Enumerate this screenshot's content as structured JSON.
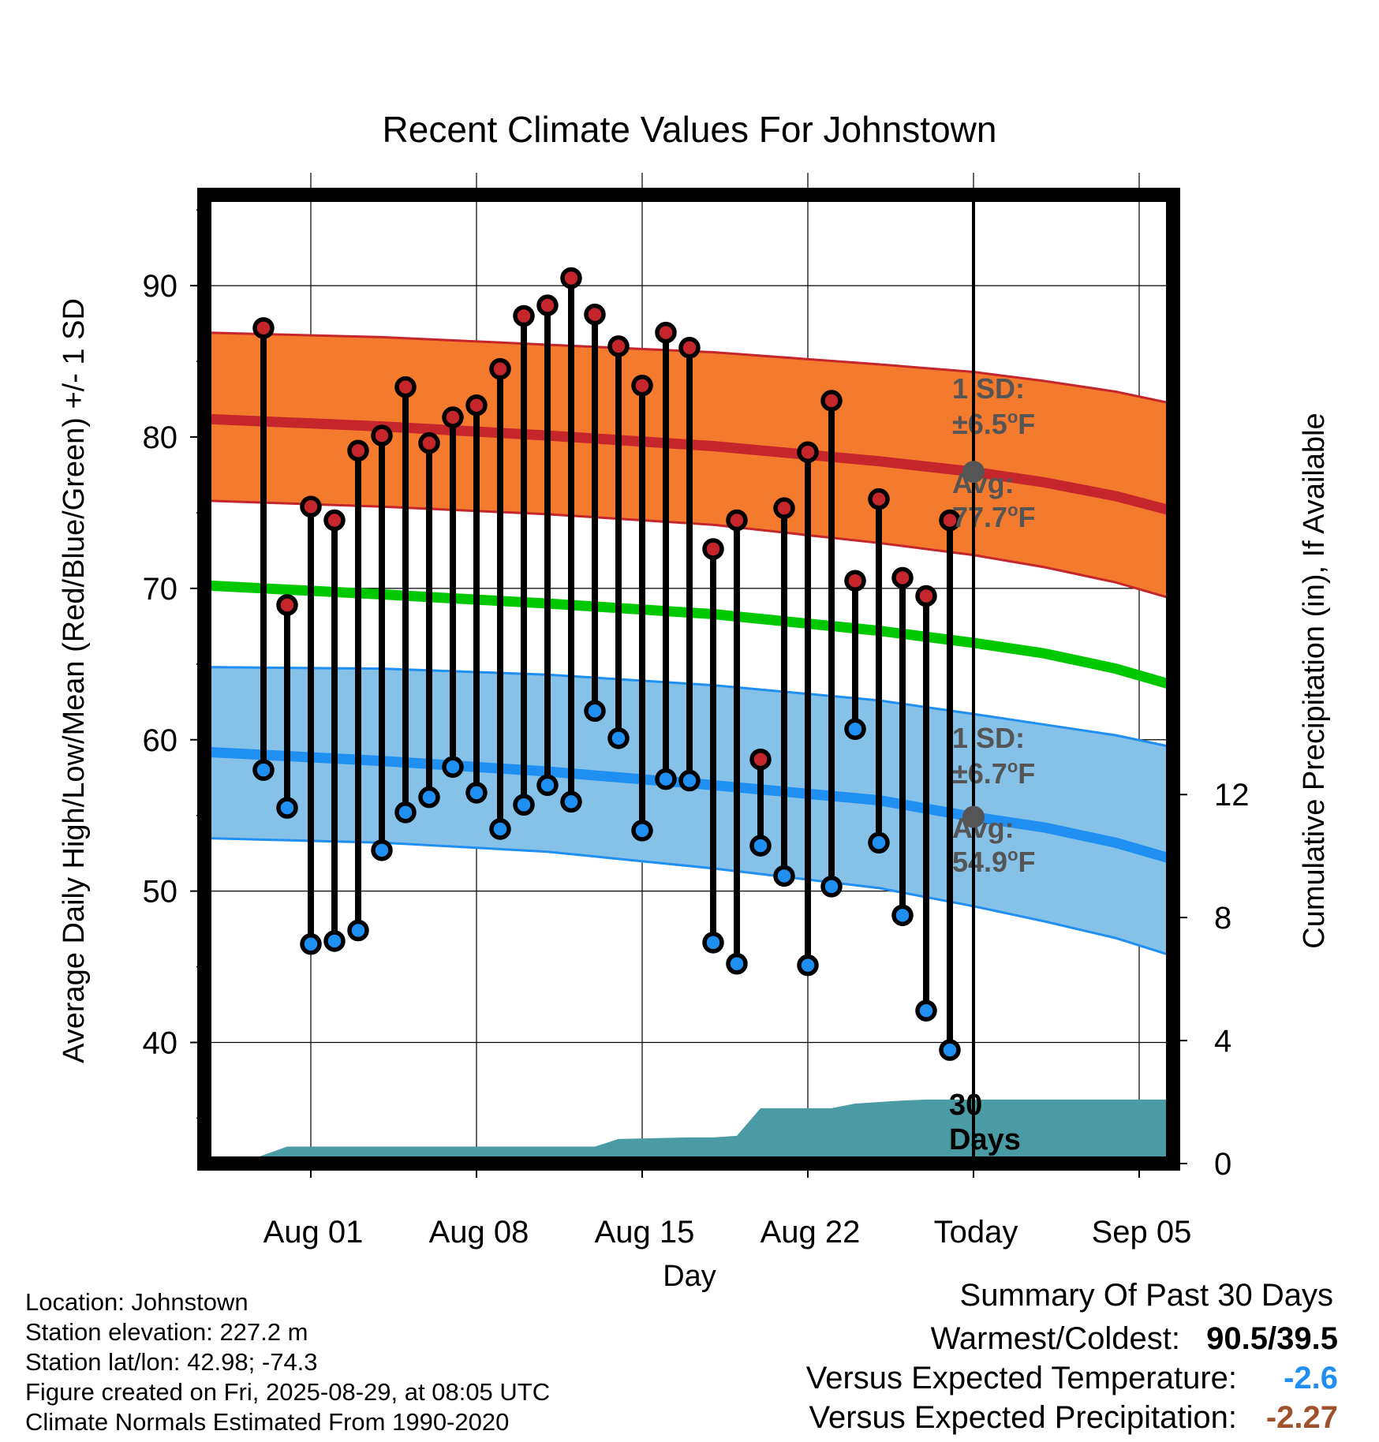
{
  "chart_data": {
    "type": "line",
    "title": "Recent Climate Values For Johnstown",
    "xlabel": "Day",
    "ylabel": "Average Daily High/Low/Mean (Red/Blue/Green) +/- 1 SD",
    "y2label": "Cumulative Precipitation (in), If Available",
    "ylim": [
      32,
      96
    ],
    "y2lim": [
      0,
      31.5
    ],
    "xlim": [
      "2025-07-28",
      "2025-09-07"
    ],
    "x_ticks": [
      {
        "date": "2025-08-01",
        "label": "Aug 01"
      },
      {
        "date": "2025-08-08",
        "label": "Aug 08"
      },
      {
        "date": "2025-08-15",
        "label": "Aug 15"
      },
      {
        "date": "2025-08-22",
        "label": "Aug 22"
      },
      {
        "date": "2025-08-29",
        "label": "Today"
      },
      {
        "date": "2025-09-05",
        "label": "Sep 05"
      }
    ],
    "y_ticks": [
      40,
      50,
      60,
      70,
      80,
      90
    ],
    "y2_ticks": [
      0,
      4,
      8,
      12
    ],
    "grid": true,
    "today": "2025-08-29",
    "dates": [
      "2025-07-30",
      "2025-07-31",
      "2025-08-01",
      "2025-08-02",
      "2025-08-03",
      "2025-08-04",
      "2025-08-05",
      "2025-08-06",
      "2025-08-07",
      "2025-08-08",
      "2025-08-09",
      "2025-08-10",
      "2025-08-11",
      "2025-08-12",
      "2025-08-13",
      "2025-08-14",
      "2025-08-15",
      "2025-08-16",
      "2025-08-17",
      "2025-08-18",
      "2025-08-19",
      "2025-08-20",
      "2025-08-21",
      "2025-08-22",
      "2025-08-23",
      "2025-08-24",
      "2025-08-25",
      "2025-08-26",
      "2025-08-27",
      "2025-08-28"
    ],
    "series": [
      {
        "name": "High",
        "color": "#c4262b",
        "values": [
          87.2,
          68.9,
          75.4,
          74.5,
          79.1,
          80.1,
          83.3,
          79.6,
          81.3,
          82.1,
          84.5,
          88.0,
          88.7,
          90.5,
          88.1,
          86.0,
          83.4,
          86.9,
          85.9,
          72.6,
          74.5,
          58.7,
          75.3,
          79.0,
          82.4,
          70.5,
          75.9,
          70.7,
          69.5,
          74.5
        ]
      },
      {
        "name": "Low",
        "color": "#1f8ff2",
        "values": [
          58.0,
          55.5,
          46.5,
          46.7,
          47.4,
          52.7,
          55.2,
          56.2,
          58.2,
          56.5,
          54.1,
          55.7,
          57.0,
          55.9,
          61.9,
          60.1,
          54.0,
          57.4,
          57.3,
          46.6,
          45.2,
          53.0,
          51.0,
          45.1,
          50.3,
          60.7,
          53.2,
          48.4,
          42.1,
          39.5
        ]
      }
    ],
    "normals": {
      "dates": [
        "2025-07-28",
        "2025-08-04",
        "2025-08-11",
        "2025-08-18",
        "2025-08-25",
        "2025-08-29",
        "2025-09-01",
        "2025-09-04",
        "2025-09-07"
      ],
      "high_mean": [
        81.2,
        80.7,
        80.1,
        79.4,
        78.4,
        77.7,
        77.0,
        76.1,
        75.1
      ],
      "high_sd_upper": [
        86.9,
        86.6,
        86.1,
        85.6,
        84.8,
        84.3,
        83.7,
        83.0,
        82.2
      ],
      "high_sd_lower": [
        75.8,
        75.4,
        74.9,
        74.2,
        73.0,
        72.2,
        71.4,
        70.4,
        69.3
      ],
      "mean": [
        70.2,
        69.6,
        69.0,
        68.3,
        67.2,
        66.4,
        65.7,
        64.7,
        63.6
      ],
      "low_mean": [
        59.2,
        58.6,
        57.9,
        57.0,
        56.0,
        54.9,
        54.2,
        53.2,
        52.1
      ],
      "low_sd_upper": [
        64.8,
        64.7,
        64.3,
        63.6,
        62.6,
        61.7,
        61.0,
        60.3,
        59.5
      ],
      "low_sd_lower": [
        53.5,
        53.2,
        52.6,
        51.5,
        50.2,
        49.0,
        48.0,
        46.9,
        45.7
      ]
    },
    "precipitation": {
      "color": "#4a9ba3",
      "dates": [
        "2025-07-29",
        "2025-07-31",
        "2025-08-13",
        "2025-08-14",
        "2025-08-17",
        "2025-08-18",
        "2025-08-19",
        "2025-08-20",
        "2025-08-23",
        "2025-08-24",
        "2025-08-25",
        "2025-08-26",
        "2025-08-27",
        "2025-09-07"
      ],
      "values": [
        0.0,
        0.55,
        0.55,
        0.8,
        0.85,
        0.85,
        0.9,
        1.8,
        1.8,
        1.95,
        2.0,
        2.05,
        2.08,
        2.08
      ]
    },
    "annotations": {
      "high_sd_label": "1 SD:",
      "high_sd_value": "±6.5",
      "high_avg_label": "Avg:",
      "high_avg_value": "77.7",
      "low_sd_label": "1 SD:",
      "low_sd_value": "±6.7",
      "low_avg_label": "Avg:",
      "low_avg_value": "54.9",
      "degree_symbol": "o",
      "unit": "F",
      "days_label_1": "30",
      "days_label_2": "Days"
    }
  },
  "footer": {
    "location": "Location: Johnstown",
    "elevation": "Station elevation: 227.2 m",
    "latlon": "Station lat/lon: 42.98; -74.3",
    "created": "Figure created on Fri, 2025-08-29, at 08:05 UTC",
    "normals": "Climate Normals Estimated From 1990-2020"
  },
  "summary": {
    "title": "Summary Of Past 30 Days",
    "warm_cold_label": "Warmest/Coldest:",
    "warm_cold_value": "90.5/39.5",
    "temp_label": "Versus Expected Temperature:",
    "temp_value": "-2.6",
    "temp_color": "#1f8ff2",
    "precip_label": "Versus Expected Precipitation:",
    "precip_value": "-2.27",
    "precip_color": "#a0522d"
  },
  "colors": {
    "high_band": "#f47a2e",
    "high_line": "#c4262b",
    "low_band": "#86c1e8",
    "low_line": "#1f8ff2",
    "mean_line": "#00c800",
    "annotation_text": "#555555"
  }
}
